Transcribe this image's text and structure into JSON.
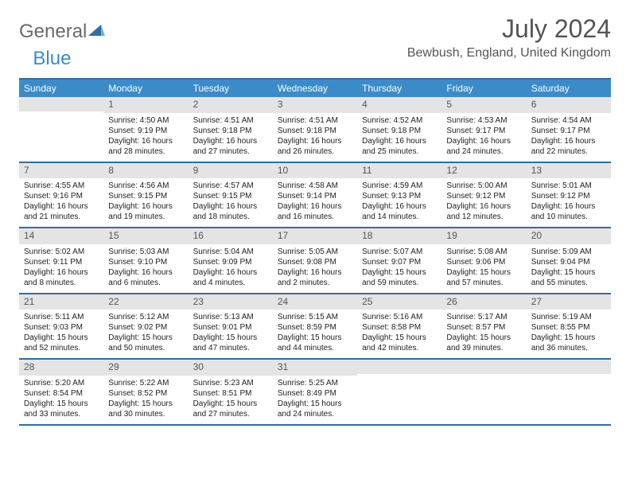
{
  "logo": {
    "word1": "General",
    "word2": "Blue"
  },
  "title": "July 2024",
  "location": "Bewbush, England, United Kingdom",
  "day_headers": [
    "Sunday",
    "Monday",
    "Tuesday",
    "Wednesday",
    "Thursday",
    "Friday",
    "Saturday"
  ],
  "header_bg": "#3b8bc9",
  "border_color": "#2e6ea5",
  "daynum_bg": "#e4e4e4",
  "weeks": [
    [
      {
        "n": "",
        "sr": "",
        "ss": "",
        "dl": ""
      },
      {
        "n": "1",
        "sr": "Sunrise: 4:50 AM",
        "ss": "Sunset: 9:19 PM",
        "dl": "Daylight: 16 hours and 28 minutes."
      },
      {
        "n": "2",
        "sr": "Sunrise: 4:51 AM",
        "ss": "Sunset: 9:18 PM",
        "dl": "Daylight: 16 hours and 27 minutes."
      },
      {
        "n": "3",
        "sr": "Sunrise: 4:51 AM",
        "ss": "Sunset: 9:18 PM",
        "dl": "Daylight: 16 hours and 26 minutes."
      },
      {
        "n": "4",
        "sr": "Sunrise: 4:52 AM",
        "ss": "Sunset: 9:18 PM",
        "dl": "Daylight: 16 hours and 25 minutes."
      },
      {
        "n": "5",
        "sr": "Sunrise: 4:53 AM",
        "ss": "Sunset: 9:17 PM",
        "dl": "Daylight: 16 hours and 24 minutes."
      },
      {
        "n": "6",
        "sr": "Sunrise: 4:54 AM",
        "ss": "Sunset: 9:17 PM",
        "dl": "Daylight: 16 hours and 22 minutes."
      }
    ],
    [
      {
        "n": "7",
        "sr": "Sunrise: 4:55 AM",
        "ss": "Sunset: 9:16 PM",
        "dl": "Daylight: 16 hours and 21 minutes."
      },
      {
        "n": "8",
        "sr": "Sunrise: 4:56 AM",
        "ss": "Sunset: 9:15 PM",
        "dl": "Daylight: 16 hours and 19 minutes."
      },
      {
        "n": "9",
        "sr": "Sunrise: 4:57 AM",
        "ss": "Sunset: 9:15 PM",
        "dl": "Daylight: 16 hours and 18 minutes."
      },
      {
        "n": "10",
        "sr": "Sunrise: 4:58 AM",
        "ss": "Sunset: 9:14 PM",
        "dl": "Daylight: 16 hours and 16 minutes."
      },
      {
        "n": "11",
        "sr": "Sunrise: 4:59 AM",
        "ss": "Sunset: 9:13 PM",
        "dl": "Daylight: 16 hours and 14 minutes."
      },
      {
        "n": "12",
        "sr": "Sunrise: 5:00 AM",
        "ss": "Sunset: 9:12 PM",
        "dl": "Daylight: 16 hours and 12 minutes."
      },
      {
        "n": "13",
        "sr": "Sunrise: 5:01 AM",
        "ss": "Sunset: 9:12 PM",
        "dl": "Daylight: 16 hours and 10 minutes."
      }
    ],
    [
      {
        "n": "14",
        "sr": "Sunrise: 5:02 AM",
        "ss": "Sunset: 9:11 PM",
        "dl": "Daylight: 16 hours and 8 minutes."
      },
      {
        "n": "15",
        "sr": "Sunrise: 5:03 AM",
        "ss": "Sunset: 9:10 PM",
        "dl": "Daylight: 16 hours and 6 minutes."
      },
      {
        "n": "16",
        "sr": "Sunrise: 5:04 AM",
        "ss": "Sunset: 9:09 PM",
        "dl": "Daylight: 16 hours and 4 minutes."
      },
      {
        "n": "17",
        "sr": "Sunrise: 5:05 AM",
        "ss": "Sunset: 9:08 PM",
        "dl": "Daylight: 16 hours and 2 minutes."
      },
      {
        "n": "18",
        "sr": "Sunrise: 5:07 AM",
        "ss": "Sunset: 9:07 PM",
        "dl": "Daylight: 15 hours and 59 minutes."
      },
      {
        "n": "19",
        "sr": "Sunrise: 5:08 AM",
        "ss": "Sunset: 9:06 PM",
        "dl": "Daylight: 15 hours and 57 minutes."
      },
      {
        "n": "20",
        "sr": "Sunrise: 5:09 AM",
        "ss": "Sunset: 9:04 PM",
        "dl": "Daylight: 15 hours and 55 minutes."
      }
    ],
    [
      {
        "n": "21",
        "sr": "Sunrise: 5:11 AM",
        "ss": "Sunset: 9:03 PM",
        "dl": "Daylight: 15 hours and 52 minutes."
      },
      {
        "n": "22",
        "sr": "Sunrise: 5:12 AM",
        "ss": "Sunset: 9:02 PM",
        "dl": "Daylight: 15 hours and 50 minutes."
      },
      {
        "n": "23",
        "sr": "Sunrise: 5:13 AM",
        "ss": "Sunset: 9:01 PM",
        "dl": "Daylight: 15 hours and 47 minutes."
      },
      {
        "n": "24",
        "sr": "Sunrise: 5:15 AM",
        "ss": "Sunset: 8:59 PM",
        "dl": "Daylight: 15 hours and 44 minutes."
      },
      {
        "n": "25",
        "sr": "Sunrise: 5:16 AM",
        "ss": "Sunset: 8:58 PM",
        "dl": "Daylight: 15 hours and 42 minutes."
      },
      {
        "n": "26",
        "sr": "Sunrise: 5:17 AM",
        "ss": "Sunset: 8:57 PM",
        "dl": "Daylight: 15 hours and 39 minutes."
      },
      {
        "n": "27",
        "sr": "Sunrise: 5:19 AM",
        "ss": "Sunset: 8:55 PM",
        "dl": "Daylight: 15 hours and 36 minutes."
      }
    ],
    [
      {
        "n": "28",
        "sr": "Sunrise: 5:20 AM",
        "ss": "Sunset: 8:54 PM",
        "dl": "Daylight: 15 hours and 33 minutes."
      },
      {
        "n": "29",
        "sr": "Sunrise: 5:22 AM",
        "ss": "Sunset: 8:52 PM",
        "dl": "Daylight: 15 hours and 30 minutes."
      },
      {
        "n": "30",
        "sr": "Sunrise: 5:23 AM",
        "ss": "Sunset: 8:51 PM",
        "dl": "Daylight: 15 hours and 27 minutes."
      },
      {
        "n": "31",
        "sr": "Sunrise: 5:25 AM",
        "ss": "Sunset: 8:49 PM",
        "dl": "Daylight: 15 hours and 24 minutes."
      },
      {
        "n": "",
        "sr": "",
        "ss": "",
        "dl": ""
      },
      {
        "n": "",
        "sr": "",
        "ss": "",
        "dl": ""
      },
      {
        "n": "",
        "sr": "",
        "ss": "",
        "dl": ""
      }
    ]
  ]
}
